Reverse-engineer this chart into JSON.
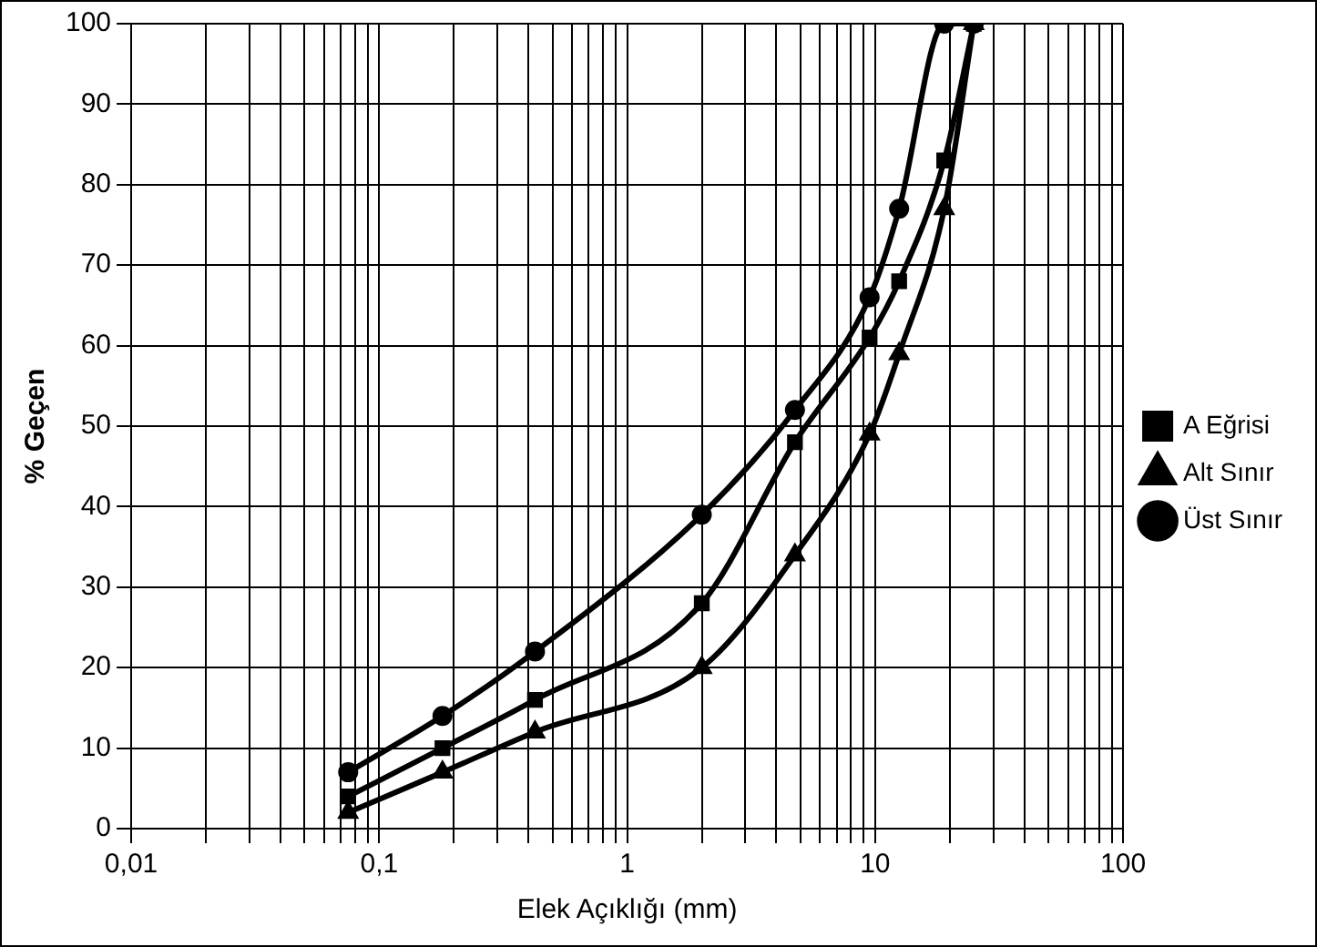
{
  "chart_data": {
    "type": "line",
    "xlabel": "Elek Açıklığı (mm)",
    "ylabel": "% Geçen",
    "x": [
      0.075,
      0.18,
      0.425,
      2,
      4.75,
      9.5,
      12.5,
      19,
      25
    ],
    "series": [
      {
        "name": "A Eğrisi",
        "color": "#000000",
        "marker": "square",
        "values": [
          4,
          10,
          16,
          28,
          48,
          61,
          68,
          83,
          100
        ]
      },
      {
        "name": "Alt Sınır",
        "color": "#000000",
        "marker": "triangle",
        "values": [
          2,
          7,
          12,
          20,
          34,
          49,
          59,
          77,
          100
        ]
      },
      {
        "name": "Üst Sınır",
        "color": "#000000",
        "marker": "circle",
        "values": [
          7,
          14,
          22,
          39,
          52,
          66,
          77,
          100,
          100
        ]
      }
    ],
    "log": "x",
    "xlim": [
      0.01,
      100
    ],
    "xticks": [
      {
        "value": 0.01,
        "label": "0,01"
      },
      {
        "value": 0.02,
        "label": null
      },
      {
        "value": 0.03,
        "label": null
      },
      {
        "value": 0.04,
        "label": null
      },
      {
        "value": 0.05,
        "label": null
      },
      {
        "value": 0.06,
        "label": null
      },
      {
        "value": 0.07,
        "label": null
      },
      {
        "value": 0.08,
        "label": null
      },
      {
        "value": 0.09,
        "label": null
      },
      {
        "value": 0.1,
        "label": "0,1"
      },
      {
        "value": 0.2,
        "label": null
      },
      {
        "value": 0.3,
        "label": null
      },
      {
        "value": 0.4,
        "label": null
      },
      {
        "value": 0.5,
        "label": null
      },
      {
        "value": 0.6,
        "label": null
      },
      {
        "value": 0.7,
        "label": null
      },
      {
        "value": 0.8,
        "label": null
      },
      {
        "value": 0.9,
        "label": null
      },
      1,
      {
        "value": 2,
        "label": null
      },
      {
        "value": 3,
        "label": null
      },
      {
        "value": 4,
        "label": null
      },
      {
        "value": 5,
        "label": null
      },
      {
        "value": 6,
        "label": null
      },
      {
        "value": 7,
        "label": null
      },
      {
        "value": 8,
        "label": null
      },
      {
        "value": 9,
        "label": null
      },
      10,
      {
        "value": 20,
        "label": null
      },
      {
        "value": 30,
        "label": null
      },
      {
        "value": 40,
        "label": null
      },
      {
        "value": 50,
        "label": null
      },
      {
        "value": 60,
        "label": null
      },
      {
        "value": 70,
        "label": null
      },
      {
        "value": 80,
        "label": null
      },
      {
        "value": 90,
        "label": null
      },
      100
    ],
    "ylim": [
      0,
      100
    ],
    "yticks": [
      0,
      10,
      20,
      30,
      40,
      50,
      60,
      70,
      80,
      90,
      100
    ],
    "grid": true,
    "legend": "right",
    "line_style": "solid"
  }
}
